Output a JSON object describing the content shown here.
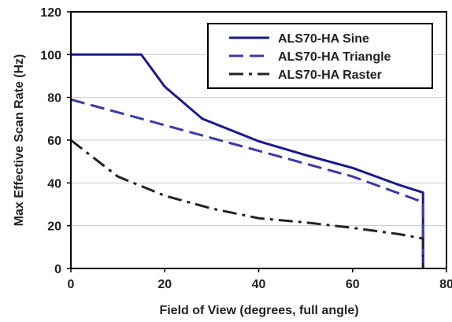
{
  "chart_data": {
    "type": "line",
    "title": "",
    "xlabel": "Field of View (degrees, full angle)",
    "ylabel": "Max Effective Scan Rate (Hz)",
    "xlim": [
      0,
      80
    ],
    "ylim": [
      0,
      120
    ],
    "xticks": [
      "0",
      "20",
      "40",
      "60",
      "80"
    ],
    "yticks": [
      "0",
      "20",
      "40",
      "60",
      "80",
      "100",
      "120"
    ],
    "grid": "horizontal",
    "legend_position": "top-right",
    "series": [
      {
        "name": "ALS70-HA Sine",
        "color": "#1a1a8c",
        "style": "solid",
        "points": [
          [
            0,
            100
          ],
          [
            15,
            100
          ],
          [
            20,
            85
          ],
          [
            28,
            70
          ],
          [
            40,
            59.5
          ],
          [
            50,
            53
          ],
          [
            60,
            47
          ],
          [
            70,
            39
          ],
          [
            75,
            35.5
          ],
          [
            75,
            0
          ]
        ]
      },
      {
        "name": "ALS70-HA Triangle",
        "color": "#3a3aa8",
        "style": "dashed",
        "points": [
          [
            0,
            79
          ],
          [
            10,
            73
          ],
          [
            20,
            67
          ],
          [
            30,
            61
          ],
          [
            40,
            55
          ],
          [
            50,
            49
          ],
          [
            60,
            43
          ],
          [
            70,
            35
          ],
          [
            75,
            31
          ],
          [
            75,
            0
          ]
        ]
      },
      {
        "name": "ALS70-HA Raster",
        "color": "#222222",
        "style": "dashdot",
        "points": [
          [
            0,
            60
          ],
          [
            10,
            43
          ],
          [
            20,
            34
          ],
          [
            30,
            28
          ],
          [
            40,
            23.5
          ],
          [
            50,
            21.5
          ],
          [
            60,
            19
          ],
          [
            70,
            16
          ],
          [
            75,
            14
          ],
          [
            75,
            0
          ]
        ]
      }
    ]
  }
}
